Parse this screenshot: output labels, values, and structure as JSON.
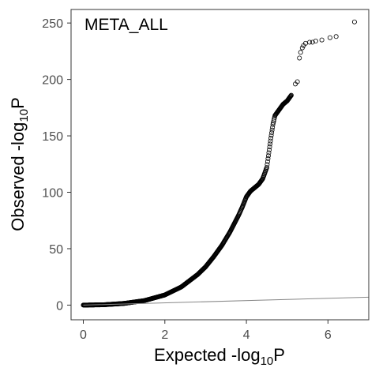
{
  "chart_data": {
    "type": "scatter",
    "title": "META_ALL",
    "xlabel": {
      "main": "Expected -log",
      "sub": "10",
      "suffix": "P"
    },
    "ylabel": {
      "main": "Observed -log",
      "sub": "10",
      "suffix": "P"
    },
    "xlim": [
      -0.3,
      7.0
    ],
    "ylim": [
      -13,
      262
    ],
    "xticks": [
      0,
      2,
      4,
      6
    ],
    "yticks": [
      0,
      50,
      100,
      150,
      200,
      250
    ],
    "xtick_labels": [
      "0",
      "2",
      "4",
      "6"
    ],
    "ytick_labels": [
      "0",
      "50",
      "100",
      "150",
      "200",
      "250"
    ],
    "grid": false,
    "reference_line": {
      "x": [
        0,
        7.0
      ],
      "y": [
        0,
        7.0
      ],
      "color": "#888888"
    },
    "point_style": {
      "fill": "none",
      "stroke": "#000000"
    },
    "curve_points": [
      [
        0,
        0
      ],
      [
        0.5,
        0.3
      ],
      [
        1.0,
        1.5
      ],
      [
        1.5,
        4
      ],
      [
        2.0,
        9
      ],
      [
        2.4,
        16
      ],
      [
        2.8,
        27
      ],
      [
        3.0,
        34
      ],
      [
        3.2,
        43
      ],
      [
        3.4,
        53
      ],
      [
        3.6,
        65
      ],
      [
        3.8,
        79
      ],
      [
        3.9,
        87
      ],
      [
        4.0,
        96
      ],
      [
        4.1,
        101
      ],
      [
        4.2,
        104
      ],
      [
        4.3,
        107
      ],
      [
        4.4,
        112
      ],
      [
        4.5,
        122
      ],
      [
        4.55,
        135
      ],
      [
        4.6,
        148
      ],
      [
        4.65,
        160
      ],
      [
        4.7,
        168
      ],
      [
        4.8,
        173
      ],
      [
        4.9,
        178
      ],
      [
        5.0,
        181
      ],
      [
        5.1,
        186
      ]
    ],
    "tail_points": [
      [
        5.2,
        196
      ],
      [
        5.25,
        198
      ],
      [
        5.3,
        219
      ],
      [
        5.33,
        224
      ],
      [
        5.37,
        228
      ],
      [
        5.4,
        230
      ],
      [
        5.45,
        232
      ],
      [
        5.55,
        233
      ],
      [
        5.62,
        233
      ],
      [
        5.7,
        234
      ],
      [
        5.85,
        235
      ],
      [
        6.05,
        237
      ],
      [
        6.2,
        238
      ],
      [
        6.65,
        251
      ]
    ]
  }
}
